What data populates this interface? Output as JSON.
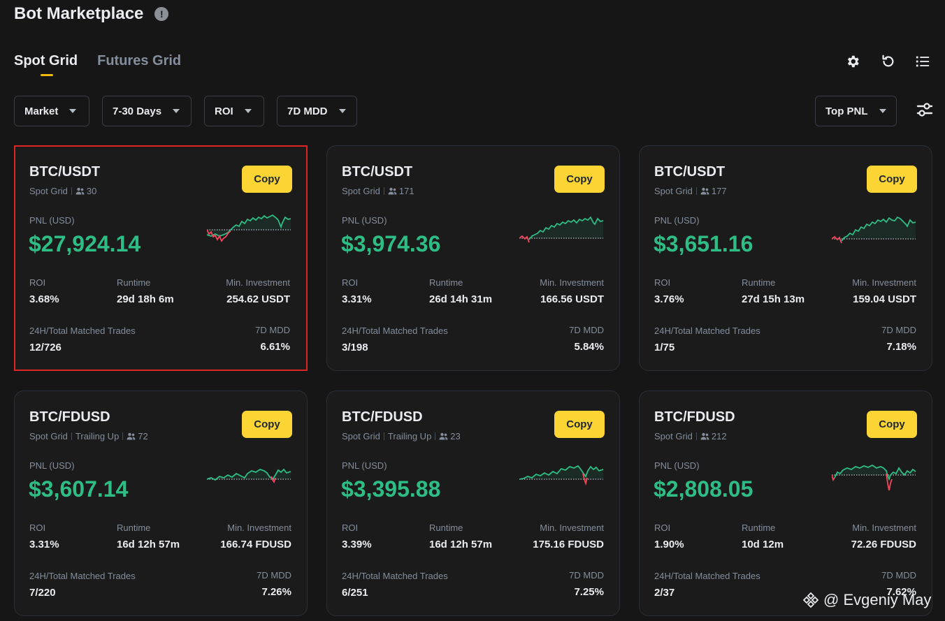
{
  "header": {
    "title": "Bot Marketplace",
    "info_icon": "!"
  },
  "tabs": [
    {
      "label": "Spot Grid",
      "active": true
    },
    {
      "label": "Futures Grid",
      "active": false
    }
  ],
  "toolbar_icons": [
    "gear-icon",
    "refresh-icon",
    "list-icon"
  ],
  "filters": [
    {
      "label": "Market"
    },
    {
      "label": "7-30 Days"
    },
    {
      "label": "ROI"
    },
    {
      "label": "7D MDD"
    }
  ],
  "sort": {
    "label": "Top PNL"
  },
  "labels": {
    "copy": "Copy",
    "pnl": "PNL (USD)",
    "roi": "ROI",
    "runtime": "Runtime",
    "min_investment": "Min. Investment",
    "trades": "24H/Total Matched Trades",
    "mdd": "7D MDD"
  },
  "colors": {
    "accent": "#fcd535",
    "profit": "#2ebd85",
    "loss": "#f6465d",
    "highlight": "#e02424"
  },
  "cards": [
    {
      "pair": "BTC/USDT",
      "tags": [
        "Spot Grid"
      ],
      "users": "30",
      "pnl": "$27,924.14",
      "roi": "3.68%",
      "runtime": "29d 18h 6m",
      "min_investment": "254.62 USDT",
      "trades": "12/726",
      "mdd": "6.61%",
      "highlighted": true
    },
    {
      "pair": "BTC/USDT",
      "tags": [
        "Spot Grid"
      ],
      "users": "171",
      "pnl": "$3,974.36",
      "roi": "3.31%",
      "runtime": "26d 14h 31m",
      "min_investment": "166.56 USDT",
      "trades": "3/198",
      "mdd": "5.84%"
    },
    {
      "pair": "BTC/USDT",
      "tags": [
        "Spot Grid"
      ],
      "users": "177",
      "pnl": "$3,651.16",
      "roi": "3.76%",
      "runtime": "27d 15h 13m",
      "min_investment": "159.04 USDT",
      "trades": "1/75",
      "mdd": "7.18%"
    },
    {
      "pair": "BTC/FDUSD",
      "tags": [
        "Spot Grid",
        "Trailing Up"
      ],
      "users": "72",
      "pnl": "$3,607.14",
      "roi": "3.31%",
      "runtime": "16d 12h 57m",
      "min_investment": "166.74 FDUSD",
      "trades": "7/220",
      "mdd": "7.26%"
    },
    {
      "pair": "BTC/FDUSD",
      "tags": [
        "Spot Grid",
        "Trailing Up"
      ],
      "users": "23",
      "pnl": "$3,395.88",
      "roi": "3.39%",
      "runtime": "16d 12h 57m",
      "min_investment": "175.16 FDUSD",
      "trades": "6/251",
      "mdd": "7.25%"
    },
    {
      "pair": "BTC/FDUSD",
      "tags": [
        "Spot Grid"
      ],
      "users": "212",
      "pnl": "$2,808.05",
      "roi": "1.90%",
      "runtime": "10d 12m",
      "min_investment": "72.26 FDUSD",
      "trades": "2/37",
      "mdd": "7.62%"
    }
  ],
  "watermark": "@ Evgeniy May"
}
